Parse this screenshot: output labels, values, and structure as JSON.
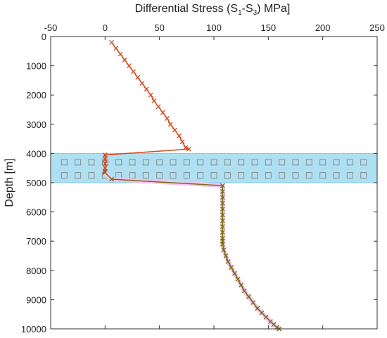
{
  "chart_data": {
    "type": "line",
    "title": "",
    "xlabel": {
      "prefix": "Differential Stress (S",
      "sub1": "1",
      "mid": "-S",
      "sub2": "3",
      "suffix": ") MPa]"
    },
    "ylabel": "Depth [m]",
    "xlim": [
      -50,
      250
    ],
    "ylim": [
      0,
      10000
    ],
    "y_inverted": true,
    "x_axis_position": "top",
    "x_ticks": [
      "-50",
      "0",
      "50",
      "100",
      "150",
      "200",
      "250"
    ],
    "x_tick_values": [
      -50,
      0,
      50,
      100,
      150,
      200,
      250
    ],
    "y_ticks": [
      "0",
      "1000",
      "2000",
      "3000",
      "4000",
      "5000",
      "6000",
      "7000",
      "8000",
      "9000",
      "10000"
    ],
    "y_tick_values": [
      0,
      1000,
      2000,
      3000,
      4000,
      5000,
      6000,
      7000,
      8000,
      9000,
      10000
    ],
    "grid": false,
    "band": {
      "from": 4000,
      "to": 5000,
      "color": "#aee0f2",
      "border": "#7cc7e6",
      "marker_rows": [
        4300,
        4750
      ],
      "marker_step": 12.5
    },
    "series": [
      {
        "color": "#d04a1e",
        "marker": "x",
        "x": [
          6,
          10,
          14,
          18,
          22,
          26,
          30,
          34,
          38,
          42,
          45,
          49,
          53,
          57,
          60,
          64,
          68,
          71,
          74,
          77,
          0,
          0,
          0,
          0,
          0,
          0
        ],
        "y": [
          200,
          400,
          600,
          800,
          1000,
          1200,
          1400,
          1600,
          1800,
          2000,
          2200,
          2400,
          2600,
          2800,
          3000,
          3200,
          3400,
          3600,
          3800,
          3850,
          4050,
          4200,
          4350,
          4500,
          4600,
          4650
        ]
      },
      {
        "color": "#7a6a10",
        "halo": "#f2c4f2",
        "marker": "x",
        "x": [
          0,
          6,
          108,
          108,
          108,
          108,
          108,
          108,
          108,
          108,
          108,
          108,
          108,
          108,
          109,
          111,
          113,
          116,
          119,
          122,
          125,
          128,
          132,
          136,
          140,
          144,
          148,
          152,
          155,
          158,
          160
        ],
        "y": [
          4650,
          4880,
          5100,
          5300,
          5500,
          5700,
          5900,
          6100,
          6300,
          6500,
          6700,
          6900,
          7000,
          7100,
          7300,
          7500,
          7700,
          7900,
          8100,
          8300,
          8500,
          8700,
          8900,
          9100,
          9300,
          9450,
          9600,
          9750,
          9850,
          9950,
          10000
        ]
      }
    ]
  }
}
